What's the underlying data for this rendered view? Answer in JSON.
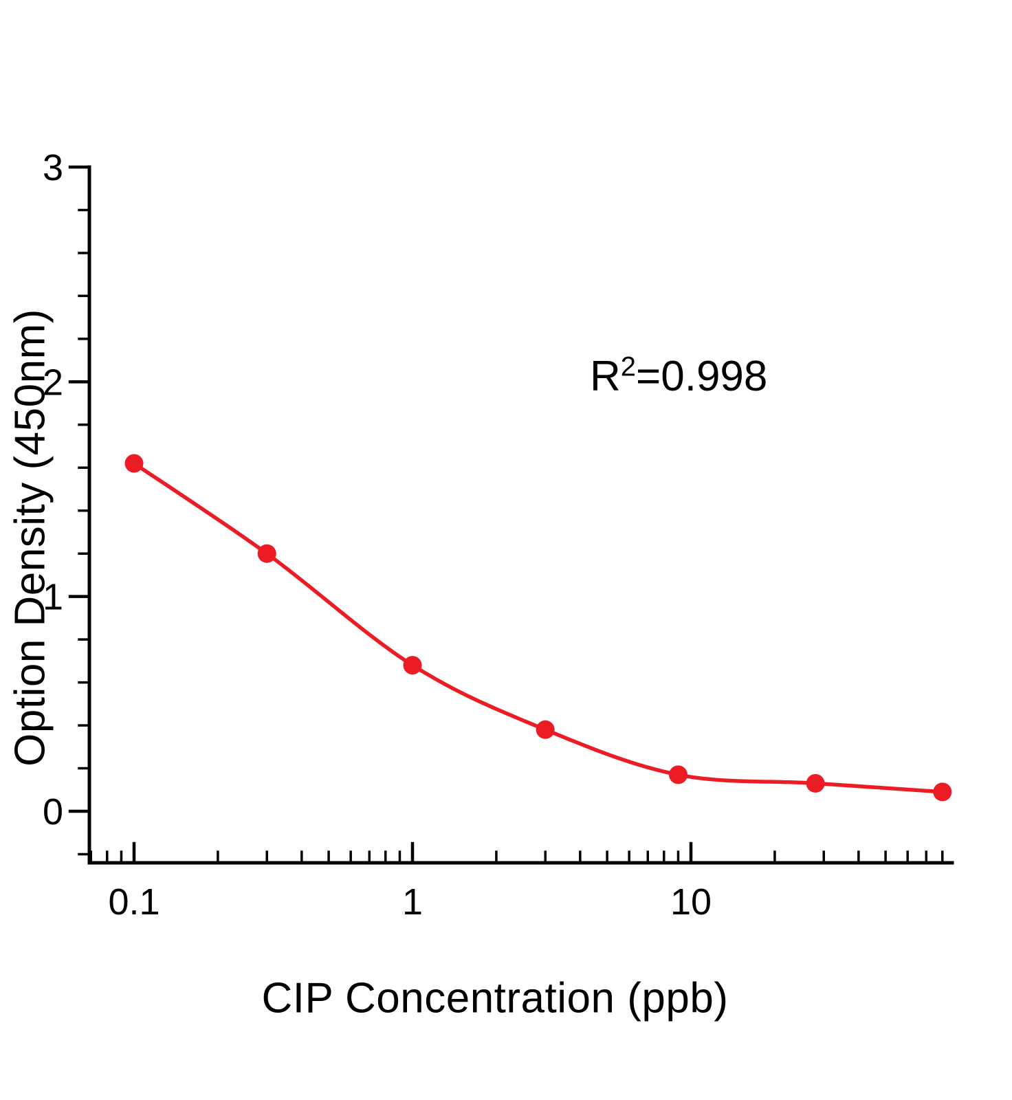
{
  "page": {
    "background": "#ffffff",
    "text_color": "#000000"
  },
  "annotation": {
    "base": "R",
    "exponent": "2",
    "value": "=0.998"
  },
  "chart_data": {
    "type": "scatter",
    "title": "",
    "xlabel": "CIP Concentration (ppb)",
    "ylabel": "Option Density (450nm)",
    "annotation": "R²=0.998",
    "r_squared": "0.998",
    "x_scale": "log",
    "grid": false,
    "legend": false,
    "series_color": "#ec1c24",
    "marker": "circle",
    "x": [
      0.1,
      0.3,
      1,
      3,
      9,
      28,
      80
    ],
    "y": [
      1.62,
      1.2,
      0.68,
      0.38,
      0.17,
      0.13,
      0.09
    ],
    "x_major_ticks": [
      0.1,
      1,
      10
    ],
    "x_tick_labels": [
      "0.1",
      "1",
      "10"
    ],
    "y_major_ticks": [
      0,
      1,
      2,
      3
    ],
    "y_tick_labels": [
      "0",
      "1",
      "2",
      "3"
    ],
    "xlim": [
      0.069,
      83
    ],
    "ylim": [
      -0.24,
      3
    ],
    "y_minor_tick_step": 0.2
  }
}
